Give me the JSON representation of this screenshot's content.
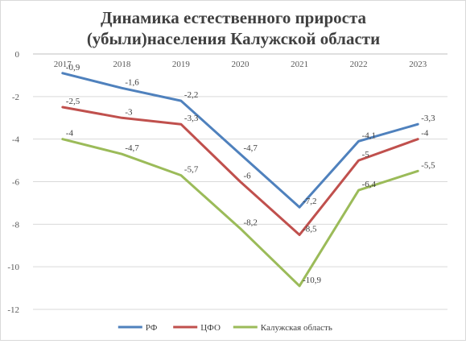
{
  "chart_data": {
    "type": "line",
    "title": [
      "Динамика естественного прироста",
      "(убыли)населения Калужской области"
    ],
    "categories": [
      "2017",
      "2018",
      "2019",
      "2020",
      "2021",
      "2022",
      "2023"
    ],
    "ylim": [
      -12,
      0
    ],
    "yticks": [
      0,
      -2,
      -4,
      -6,
      -8,
      -10,
      -12
    ],
    "x_axis_position": "top",
    "grid": true,
    "legend_position": "bottom",
    "series": [
      {
        "name": "РФ",
        "color": "#4f81bd",
        "values": [
          -0.9,
          -1.6,
          -2.2,
          -4.7,
          -7.2,
          -4.1,
          -3.3
        ],
        "labels": [
          "-0,9",
          "-1,6",
          "-2,2",
          "-4,7",
          "-7,2",
          "-4,1",
          "-3,3"
        ]
      },
      {
        "name": "ЦФО",
        "color": "#c0504d",
        "values": [
          -2.5,
          -3,
          -3.3,
          -6,
          -8.5,
          -5,
          -4
        ],
        "labels": [
          "-2,5",
          "-3",
          "-3,3",
          "-6",
          "-8,5",
          "-5",
          "-4"
        ]
      },
      {
        "name": "Калужская область",
        "color": "#9bbb59",
        "values": [
          -4,
          -4.7,
          -5.7,
          -8.2,
          -10.9,
          -6.4,
          -5.5
        ],
        "labels": [
          "-4",
          "-4,7",
          "-5,7",
          "-8,2",
          "-10,9",
          "-6,4",
          "-5,5"
        ]
      }
    ]
  }
}
